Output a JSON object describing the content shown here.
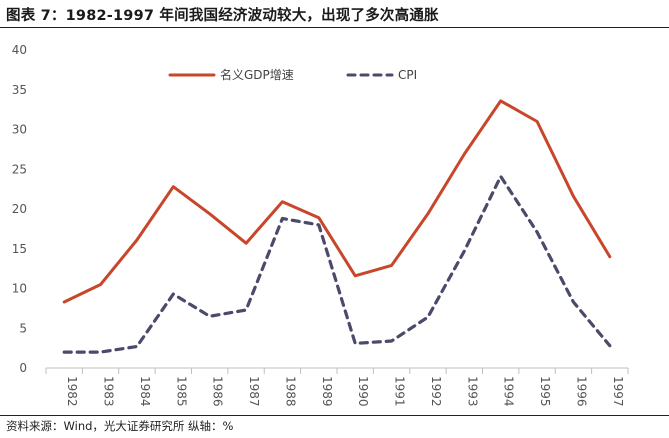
{
  "title": "图表 7：1982-1997 年间我国经济波动较大，出现了多次高通胀",
  "source": "资料来源：Wind，光大证券研究所 纵轴：%",
  "chart_data": {
    "type": "line",
    "title": "图表 7：1982-1997 年间我国经济波动较大，出现了多次高通胀",
    "xlabel": "",
    "ylabel": "",
    "categories": [
      "1982",
      "1983",
      "1984",
      "1985",
      "1986",
      "1987",
      "1988",
      "1989",
      "1990",
      "1991",
      "1992",
      "1993",
      "1994",
      "1995",
      "1996",
      "1997"
    ],
    "ylim": [
      0,
      40
    ],
    "yticks": [
      "0",
      "5",
      "10",
      "15",
      "20",
      "25",
      "30",
      "35",
      "40"
    ],
    "grid": false,
    "legend_position": "top-center",
    "series": [
      {
        "name": "名义GDP增速",
        "color": "#C8462A",
        "style": "solid",
        "values": [
          8.3,
          10.5,
          16.1,
          22.8,
          19.4,
          15.7,
          20.9,
          18.9,
          11.6,
          12.9,
          19.4,
          26.9,
          33.6,
          31.0,
          21.6,
          14.0
        ]
      },
      {
        "name": "CPI",
        "color": "#4A4A6A",
        "style": "dashed",
        "values": [
          2.0,
          2.0,
          2.7,
          9.3,
          6.5,
          7.3,
          18.8,
          18.0,
          3.1,
          3.4,
          6.4,
          14.7,
          24.1,
          17.1,
          8.3,
          2.8
        ]
      }
    ]
  }
}
